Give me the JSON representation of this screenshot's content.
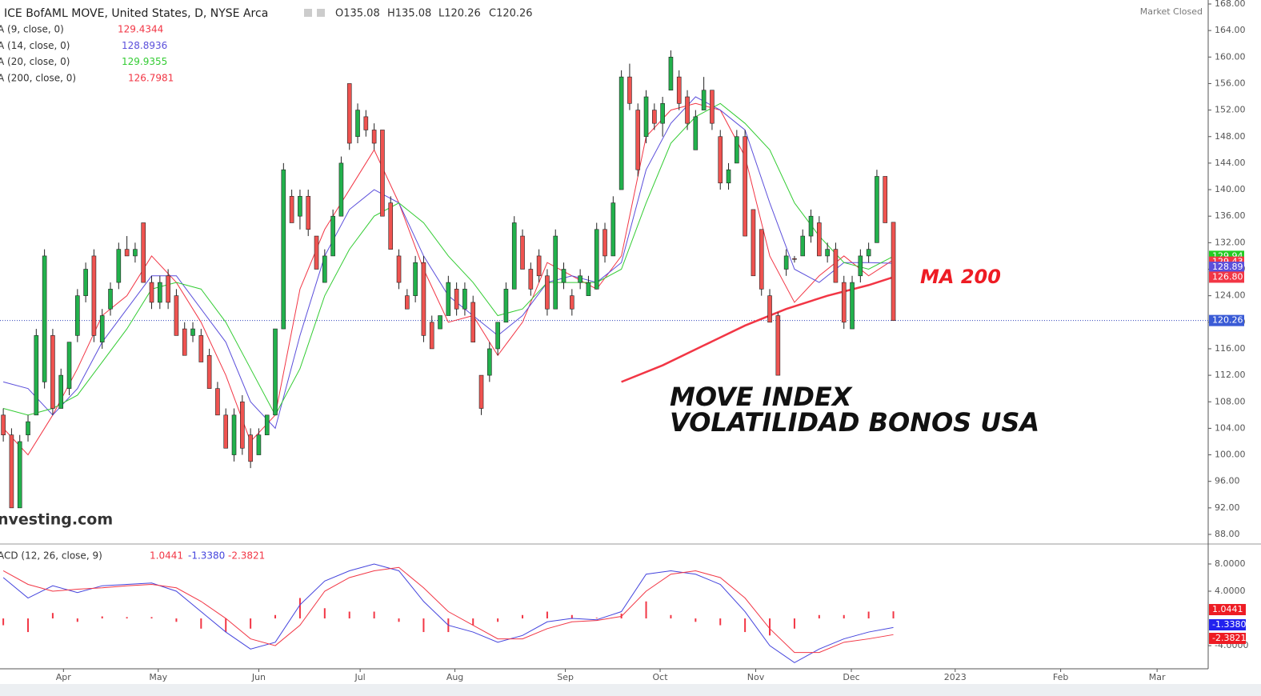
{
  "chart_data": [
    {
      "type": "candlestick",
      "title": "ICE BofAML MOVE, United States, D, NYSE Arca",
      "ohlc_labels": [
        "O135.08",
        "H135.08",
        "L120.26",
        "C120.26"
      ],
      "status": "Market Closed",
      "watermark": "nvesting.com",
      "up_color": "#22b14c",
      "down_color": "#ef5350",
      "x": [
        0,
        1,
        2,
        3,
        4,
        5,
        6,
        7,
        8,
        9,
        10,
        11,
        12,
        13,
        14,
        15,
        16,
        17,
        18,
        19,
        20,
        21,
        22,
        23,
        24,
        25,
        26,
        27,
        28,
        29,
        30,
        31,
        32,
        33,
        34,
        35,
        36,
        37,
        38,
        39,
        40,
        41,
        42,
        43,
        44,
        45,
        46,
        47,
        48,
        49,
        50,
        51,
        52,
        53,
        54,
        55,
        56,
        57,
        58,
        59,
        60,
        61,
        62,
        63,
        64,
        65,
        66,
        67,
        68,
        69,
        70,
        71,
        72,
        73,
        74,
        75,
        76,
        77,
        78,
        79,
        80,
        81,
        82,
        83,
        84,
        85,
        86,
        87,
        88,
        89,
        90,
        91,
        92,
        93,
        94,
        95,
        96,
        97,
        98,
        99,
        100,
        101,
        102,
        103,
        104,
        105,
        106,
        107,
        108
      ],
      "open": [
        106,
        103,
        92,
        103,
        106,
        111,
        118,
        107,
        110,
        118,
        124,
        130,
        117,
        122,
        126,
        131,
        130,
        135,
        126,
        123,
        127,
        124,
        119,
        118,
        118,
        115,
        110,
        106,
        100,
        108,
        103,
        100,
        103,
        106,
        119,
        139,
        136,
        139,
        133,
        126,
        130,
        136,
        156,
        148,
        151,
        149,
        149,
        138,
        130,
        124,
        124,
        129,
        120,
        119,
        121,
        125,
        122,
        123,
        112,
        112,
        116,
        120,
        125,
        133,
        128,
        130,
        127,
        122,
        126,
        124,
        126,
        124,
        125,
        134,
        130,
        140,
        157,
        152,
        148,
        152,
        150,
        155,
        157,
        154,
        146,
        152,
        155,
        148,
        141,
        144,
        148,
        137,
        134,
        124,
        121,
        128,
        129.6,
        130,
        133,
        135,
        130,
        131,
        126,
        119,
        127,
        130,
        132,
        142,
        135.08
      ],
      "high": [
        107,
        104,
        103,
        106,
        119,
        131,
        119,
        113,
        117,
        125,
        129,
        131,
        122,
        126,
        132,
        133,
        132,
        135,
        127,
        127,
        128,
        125,
        120,
        120,
        119,
        116,
        111,
        107,
        107,
        109,
        104,
        104,
        106,
        119,
        144,
        140,
        140,
        140,
        133,
        131,
        137,
        145,
        156,
        153,
        152,
        150,
        149,
        139,
        131,
        125,
        130,
        130,
        121,
        121,
        127,
        126,
        126,
        124,
        112,
        117,
        120,
        126,
        136,
        134,
        129,
        131,
        128,
        134,
        129,
        125,
        128,
        127,
        135,
        135,
        139,
        158,
        159,
        153,
        155,
        153,
        154,
        161,
        158,
        155,
        152,
        157,
        155,
        149,
        144,
        149,
        149,
        137,
        134,
        125,
        121.5,
        131,
        130,
        134,
        137,
        136,
        132,
        132,
        127,
        127,
        131,
        132,
        143,
        142,
        135.08
      ],
      "low": [
        102,
        92,
        92,
        102,
        106,
        110,
        106,
        107,
        109,
        117,
        123,
        117,
        116,
        121,
        125,
        130,
        129,
        126,
        122,
        122,
        122,
        118,
        115,
        117,
        114,
        110,
        106,
        101,
        99,
        100,
        98,
        100,
        103,
        106,
        119,
        135,
        134,
        133,
        128,
        126,
        130,
        136,
        146,
        147,
        148,
        146,
        136,
        131,
        125,
        122,
        123,
        117,
        116,
        119,
        121,
        121,
        121,
        117,
        106,
        111,
        115,
        120,
        125,
        128,
        124,
        126,
        121,
        122,
        125,
        121,
        125,
        124,
        125,
        129,
        130,
        140,
        152,
        142,
        147,
        149,
        148,
        155,
        152,
        149,
        146,
        152,
        149,
        140,
        140,
        144,
        133,
        127,
        124,
        120,
        112,
        127,
        129,
        130,
        132,
        130,
        129,
        126,
        119,
        119,
        126,
        129,
        132,
        135,
        120.26
      ],
      "close": [
        103,
        92,
        102,
        105,
        118,
        130,
        107,
        112,
        117,
        124,
        128,
        118,
        121,
        125,
        131,
        130,
        131,
        126,
        123,
        126,
        123,
        118,
        115,
        119,
        114,
        110,
        106,
        101,
        106,
        101,
        99,
        103,
        106,
        119,
        143,
        135,
        139,
        134,
        128,
        130,
        136,
        144,
        147,
        152,
        149,
        147,
        136,
        131,
        126,
        122,
        129,
        118,
        116,
        121,
        126,
        122,
        125,
        117,
        107,
        116,
        120,
        125,
        135,
        128,
        125,
        127,
        122,
        133,
        128,
        122,
        127,
        126,
        134,
        130,
        138,
        157,
        153,
        143,
        154,
        150,
        153,
        160,
        153,
        150,
        151,
        155,
        150,
        141,
        143,
        148,
        133,
        127,
        125,
        120,
        112,
        130,
        129.5,
        133,
        136,
        130,
        131,
        126,
        120,
        126,
        130,
        131,
        142,
        135,
        120.26
      ],
      "last_tag": 120.26,
      "xlim": [
        -0.4,
        146.2
      ],
      "xticks": [
        {
          "value": 7.3,
          "label": "Apr"
        },
        {
          "value": 18.8,
          "label": "May"
        },
        {
          "value": 31,
          "label": "Jun"
        },
        {
          "value": 43.3,
          "label": "Jul"
        },
        {
          "value": 54.8,
          "label": "Aug"
        },
        {
          "value": 68.2,
          "label": "Sep"
        },
        {
          "value": 79.7,
          "label": "Oct"
        },
        {
          "value": 91.3,
          "label": "Nov"
        },
        {
          "value": 102.9,
          "label": "Dec"
        },
        {
          "value": 115.5,
          "label": "2023"
        },
        {
          "value": 128.3,
          "label": "Feb"
        },
        {
          "value": 140,
          "label": "Mar"
        }
      ],
      "ylim": [
        88,
        168
      ],
      "yticks": [
        {
          "value": 88,
          "label": "88.00"
        },
        {
          "value": 92,
          "label": "92.00"
        },
        {
          "value": 96,
          "label": "96.00"
        },
        {
          "value": 100,
          "label": "100.00"
        },
        {
          "value": 104,
          "label": "104.00"
        },
        {
          "value": 108,
          "label": "108.00"
        },
        {
          "value": 112,
          "label": "112.00"
        },
        {
          "value": 116,
          "label": "116.00"
        },
        {
          "value": 120,
          "label": "120.00"
        },
        {
          "value": 124,
          "label": "124.00"
        },
        {
          "value": 128,
          "label": "128.00"
        },
        {
          "value": 132,
          "label": "132.00"
        },
        {
          "value": 136,
          "label": "136.00"
        },
        {
          "value": 140,
          "label": "140.00"
        },
        {
          "value": 144,
          "label": "144.00"
        },
        {
          "value": 148,
          "label": "148.00"
        },
        {
          "value": 152,
          "label": "152.00"
        },
        {
          "value": 156,
          "label": "156.00"
        },
        {
          "value": 160,
          "label": "160.00"
        },
        {
          "value": 164,
          "label": "164.00"
        },
        {
          "value": 168,
          "label": "168.00"
        }
      ],
      "series": [
        {
          "name": "A (9, close, 0)",
          "color": "#f23645",
          "width": 1,
          "current": 129.4344,
          "tag": 129.43,
          "x": [
            0,
            3,
            6,
            9,
            12,
            15,
            18,
            21,
            24,
            27,
            30,
            33,
            36,
            39,
            42,
            45,
            48,
            51,
            54,
            57,
            60,
            63,
            66,
            69,
            72,
            75,
            78,
            81,
            84,
            87,
            90,
            93,
            96,
            99,
            102,
            105,
            108
          ],
          "values": [
            104,
            100,
            106,
            113,
            121,
            124,
            130,
            126,
            120,
            112,
            102,
            106,
            125,
            134,
            140,
            146,
            138,
            128,
            120,
            121,
            115,
            120,
            129,
            127,
            125,
            130,
            148,
            152,
            153,
            152,
            145,
            130,
            123,
            127,
            130,
            127,
            129.43
          ]
        },
        {
          "name": "A (14, close, 0)",
          "color": "#5b4fdb",
          "width": 1,
          "current": 128.8936,
          "tag": 128.89,
          "x": [
            0,
            3,
            6,
            9,
            12,
            15,
            18,
            21,
            24,
            27,
            30,
            33,
            36,
            39,
            42,
            45,
            48,
            51,
            54,
            57,
            60,
            63,
            66,
            69,
            72,
            75,
            78,
            81,
            84,
            87,
            90,
            93,
            96,
            99,
            102,
            105,
            108
          ],
          "values": [
            111,
            110,
            106,
            110,
            117,
            122,
            127,
            127,
            122,
            117,
            108,
            104,
            118,
            130,
            137,
            140,
            138,
            130,
            124,
            121,
            118,
            121,
            126,
            127,
            126,
            129,
            143,
            150,
            154,
            152,
            149,
            138,
            128,
            126,
            129,
            129,
            128.89
          ]
        },
        {
          "name": "A (20, close, 0)",
          "color": "#33cc33",
          "width": 1,
          "current": 129.9355,
          "tag": 129.94,
          "x": [
            0,
            3,
            6,
            9,
            12,
            15,
            18,
            21,
            24,
            27,
            30,
            33,
            36,
            39,
            42,
            45,
            48,
            51,
            54,
            57,
            60,
            63,
            66,
            69,
            72,
            75,
            78,
            81,
            84,
            87,
            90,
            93,
            96,
            99,
            102,
            105,
            108
          ],
          "values": [
            107,
            106,
            107,
            109,
            114,
            119,
            125,
            126,
            125,
            120,
            113,
            106,
            113,
            124,
            131,
            136,
            138,
            135,
            130,
            126,
            121,
            122,
            126,
            126,
            126,
            128,
            138,
            147,
            151,
            153,
            150,
            146,
            138,
            133,
            129,
            128,
            129.94
          ]
        },
        {
          "name": "A (200, close, 0)",
          "color": "#f23645",
          "width": 2.5,
          "current": 126.7981,
          "tag": {
            "value": 126.8,
            "label": "126.80"
          },
          "x": [
            75,
            80,
            85,
            90,
            95,
            100,
            105,
            108
          ],
          "values": [
            111,
            113.5,
            116.5,
            119.5,
            122,
            124,
            125.6,
            126.8
          ]
        }
      ],
      "annotations": [
        "MA 200",
        "MOVE INDEX",
        "VOLATILIDAD BONOS USA"
      ]
    },
    {
      "type": "macd",
      "title": "ACD (12, 26, close, 9)",
      "ylim": [
        -7.4,
        10.7
      ],
      "yticks": [
        {
          "value": 8,
          "label": "8.0000"
        },
        {
          "value": 4,
          "label": "4.0000"
        },
        {
          "value": -4,
          "label": "-4.0000"
        }
      ],
      "series": [
        {
          "name": "histogram",
          "color": "#f23645",
          "current": 1.0441,
          "x": [
            0,
            3,
            6,
            9,
            12,
            15,
            18,
            21,
            24,
            27,
            30,
            33,
            36,
            39,
            42,
            45,
            48,
            51,
            54,
            57,
            60,
            63,
            66,
            69,
            72,
            75,
            78,
            81,
            84,
            87,
            90,
            93,
            96,
            99,
            102,
            105,
            108
          ],
          "values": [
            -1,
            -2,
            0.8,
            -0.5,
            0.3,
            0.2,
            0.2,
            -0.5,
            -1.5,
            -2,
            -1.5,
            0.5,
            3,
            1.5,
            1,
            1,
            -0.5,
            -2,
            -2,
            -1,
            -0.5,
            0.5,
            1,
            0.5,
            0.1,
            0.7,
            2.5,
            0.5,
            -0.5,
            -1,
            -2,
            -2.5,
            -1.5,
            0.5,
            0.5,
            1,
            1.0441
          ]
        },
        {
          "name": "macd",
          "color": "#4444dd",
          "current": {
            "value": -1.338,
            "label": "-1.3380"
          },
          "x": [
            0,
            3,
            6,
            9,
            12,
            15,
            18,
            21,
            24,
            27,
            30,
            33,
            36,
            39,
            42,
            45,
            48,
            51,
            54,
            57,
            60,
            63,
            66,
            69,
            72,
            75,
            78,
            81,
            84,
            87,
            90,
            93,
            96,
            99,
            102,
            105,
            108
          ],
          "values": [
            6,
            3,
            4.8,
            3.8,
            4.8,
            5,
            5.2,
            4,
            1,
            -2,
            -4.5,
            -3.5,
            2,
            5.5,
            7,
            8,
            7,
            2.5,
            -1,
            -2,
            -3.5,
            -2.5,
            -0.5,
            0,
            -0.2,
            1,
            6.5,
            7,
            6.5,
            5,
            1,
            -4,
            -6.5,
            -4.5,
            -3,
            -2,
            -1.338
          ]
        },
        {
          "name": "signal",
          "color": "#f23645",
          "current": -2.3821,
          "x": [
            0,
            3,
            6,
            9,
            12,
            15,
            18,
            21,
            24,
            27,
            30,
            33,
            36,
            39,
            42,
            45,
            48,
            51,
            54,
            57,
            60,
            63,
            66,
            69,
            72,
            75,
            78,
            81,
            84,
            87,
            90,
            93,
            96,
            99,
            102,
            105,
            108
          ],
          "values": [
            7,
            5,
            4,
            4.3,
            4.5,
            4.8,
            5,
            4.5,
            2.5,
            0,
            -3,
            -4,
            -1,
            4,
            6,
            7,
            7.5,
            4.5,
            1,
            -1,
            -3,
            -3,
            -1.5,
            -0.5,
            -0.3,
            0.3,
            4,
            6.5,
            7,
            6,
            3,
            -1.5,
            -5,
            -5,
            -3.5,
            -3,
            -2.3821
          ]
        }
      ]
    }
  ]
}
